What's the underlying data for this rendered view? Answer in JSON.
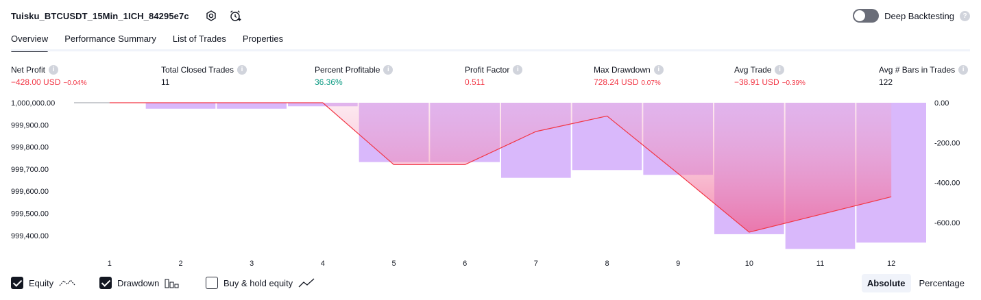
{
  "header": {
    "strategy_title": "Tuisku_BTCUSDT_15Min_1ICH_84295e7c",
    "deep_backtesting_label": "Deep Backtesting",
    "deep_backtesting_enabled": false,
    "icons": [
      "settings-icon",
      "alarm-add-icon",
      "help-icon"
    ]
  },
  "tabs": [
    {
      "label": "Overview",
      "active": true
    },
    {
      "label": "Performance Summary",
      "active": false
    },
    {
      "label": "List of Trades",
      "active": false
    },
    {
      "label": "Properties",
      "active": false
    }
  ],
  "metrics": [
    {
      "label": "Net Profit",
      "value": "−428.00 USD",
      "pct": "−0.04%",
      "tone": "red"
    },
    {
      "label": "Total Closed Trades",
      "value": "11",
      "pct": "",
      "tone": "dark"
    },
    {
      "label": "Percent Profitable",
      "value": "36.36%",
      "pct": "",
      "tone": "green"
    },
    {
      "label": "Profit Factor",
      "value": "0.511",
      "pct": "",
      "tone": "red"
    },
    {
      "label": "Max Drawdown",
      "value": "728.24 USD",
      "pct": "0.07%",
      "tone": "red"
    },
    {
      "label": "Avg Trade",
      "value": "−38.91 USD",
      "pct": "−0.39%",
      "tone": "red"
    },
    {
      "label": "Avg # Bars in Trades",
      "value": "122",
      "pct": "",
      "tone": "dark"
    }
  ],
  "chart_data": {
    "type": "line",
    "x": [
      1,
      2,
      3,
      4,
      5,
      6,
      7,
      8,
      9,
      10,
      11,
      12
    ],
    "left_axis": {
      "ticks": [
        "1,000,000.00",
        "999,900.00",
        "999,800.00",
        "999,700.00",
        "999,600.00",
        "999,500.00",
        "999,400.00"
      ],
      "range": [
        999350,
        1000000
      ]
    },
    "right_axis": {
      "ticks": [
        "0.00",
        "-200.00",
        "-400.00",
        "-600.00"
      ],
      "range": [
        -720,
        0
      ]
    },
    "series": [
      {
        "name": "Equity",
        "axis": "left",
        "kind": "line",
        "color": "#f23645",
        "values": [
          1000000,
          1000000,
          1000000,
          1000000,
          999720,
          999720,
          999870,
          999940,
          999680,
          999415,
          999495,
          999575
        ]
      },
      {
        "name": "Drawdown",
        "axis": "right",
        "kind": "bar",
        "color": "#d9b8fb",
        "values": [
          0,
          -30,
          -30,
          -18,
          -297,
          -297,
          -376,
          -337,
          -361,
          -658,
          -732,
          -700
        ]
      }
    ],
    "grid": false
  },
  "footer": {
    "legend": [
      {
        "label": "Equity",
        "checked": true,
        "icon": "equity-line-icon"
      },
      {
        "label": "Drawdown",
        "checked": true,
        "icon": "drawdown-bars-icon"
      },
      {
        "label": "Buy & hold equity",
        "checked": false,
        "icon": "buy-hold-line-icon"
      }
    ],
    "modes": [
      {
        "label": "Absolute",
        "active": true
      },
      {
        "label": "Percentage",
        "active": false
      }
    ]
  }
}
